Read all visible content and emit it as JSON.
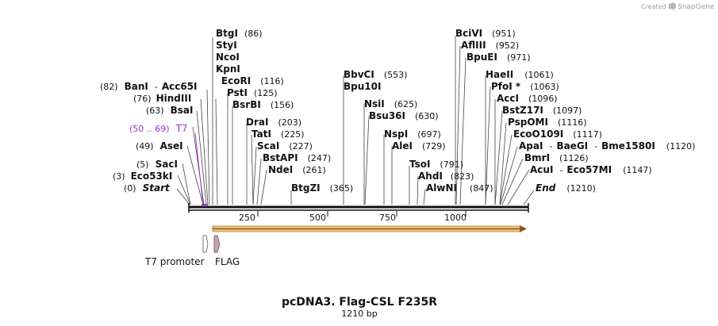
{
  "credit": {
    "text": "Created by",
    "brand": "SnapGene"
  },
  "title": "pcDNA3. Flag-CSL F235R",
  "length_label": "1210 bp",
  "ruler": {
    "ticks": [
      "250",
      "500",
      "750",
      "1000"
    ]
  },
  "sites": [
    {
      "name": "BtgI",
      "num": "(86)"
    },
    {
      "name": "StyI"
    },
    {
      "name": "NcoI"
    },
    {
      "name": "KpnI"
    },
    {
      "name": "EcoRI",
      "num": "(116)"
    },
    {
      "name": "PstI",
      "num": "(125)"
    },
    {
      "name": "BsrBI",
      "num": "(156)"
    },
    {
      "name": "BanI",
      "pre": "(82)",
      "dash": "-",
      "extra": "Acc65I"
    },
    {
      "name": "HindIII",
      "pre": "(76)"
    },
    {
      "name": "BsaI",
      "pre": "(63)"
    },
    {
      "name": "T7",
      "pre": "(50 .. 69)"
    },
    {
      "name": "AseI",
      "pre": "(49)"
    },
    {
      "name": "SacI",
      "pre": "(5)"
    },
    {
      "name": "Eco53kI",
      "pre": "(3)"
    },
    {
      "name": "Start",
      "pre": "(0)"
    },
    {
      "name": "DraI",
      "num": "(203)"
    },
    {
      "name": "TatI",
      "num": "(225)"
    },
    {
      "name": "ScaI",
      "num": "(227)"
    },
    {
      "name": "BstAPI",
      "num": "(247)"
    },
    {
      "name": "NdeI",
      "num": "(261)"
    },
    {
      "name": "BtgZI",
      "num": "(365)"
    },
    {
      "name": "BbvCI",
      "num": "(553)"
    },
    {
      "name": "Bpu10I"
    },
    {
      "name": "NsiI",
      "num": "(625)"
    },
    {
      "name": "Bsu36I",
      "num": "(630)"
    },
    {
      "name": "NspI",
      "num": "(697)"
    },
    {
      "name": "AleI",
      "num": "(729)"
    },
    {
      "name": "TsoI",
      "num": "(791)"
    },
    {
      "name": "AhdI",
      "num": "(823)"
    },
    {
      "name": "AlwNI",
      "num": "(847)"
    },
    {
      "name": "BciVI",
      "num": "(951)"
    },
    {
      "name": "AflIII",
      "num": "(952)"
    },
    {
      "name": "BpuEI",
      "num": "(971)"
    },
    {
      "name": "HaeII",
      "num": "(1061)"
    },
    {
      "name": "PfoI *",
      "num": "(1063)"
    },
    {
      "name": "AccI",
      "num": "(1096)"
    },
    {
      "name": "BstZ17I",
      "num": "(1097)"
    },
    {
      "name": "PspOMI",
      "num": "(1116)"
    },
    {
      "name": "EcoO109I",
      "num": "(1117)"
    },
    {
      "name": "ApaI",
      "dash": "-",
      "extra": "BaeGI",
      "dash2": "-",
      "extra2": "Bme1580I",
      "num": "(1120)"
    },
    {
      "name": "BmrI",
      "num": "(1126)"
    },
    {
      "name": "AcuI",
      "dash": "-",
      "extra": "Eco57MI",
      "num": "(1147)"
    },
    {
      "name": "End",
      "num": "(1210)"
    }
  ],
  "features": [
    {
      "name": "T7 promoter"
    },
    {
      "name": "FLAG"
    }
  ],
  "colors": {
    "orf_fill": "#f5c78a",
    "orf_edge": "#b07a2a",
    "flag_fill": "#c7a3b4",
    "t7_color": "#9b30d8"
  }
}
